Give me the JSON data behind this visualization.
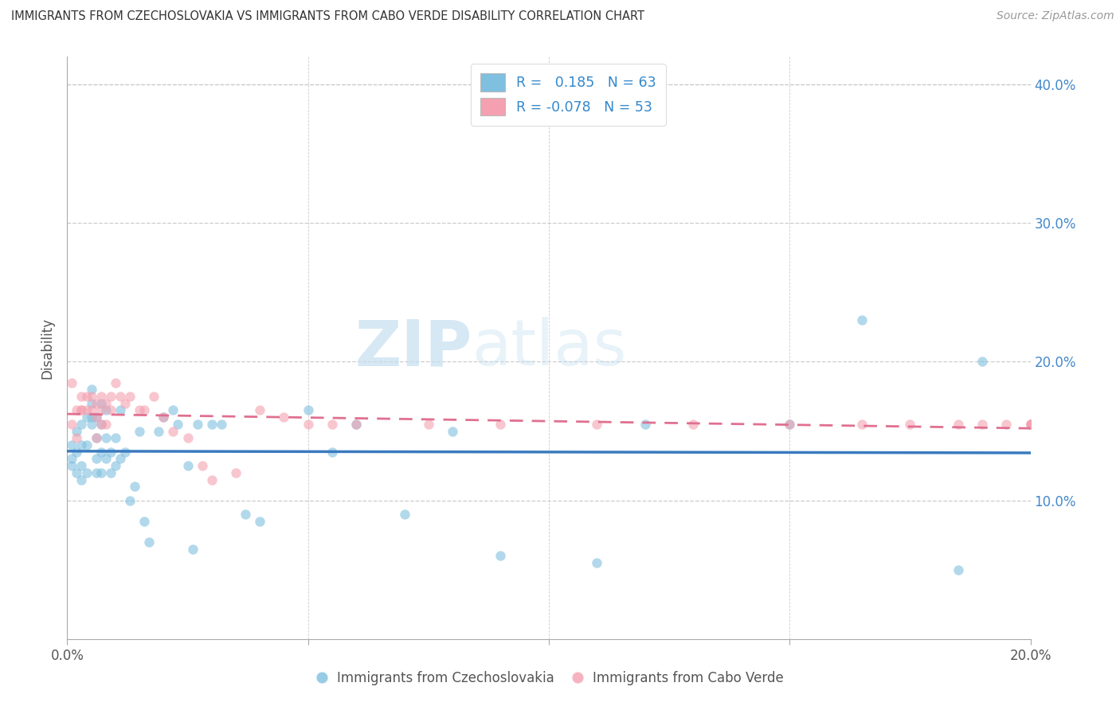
{
  "title": "IMMIGRANTS FROM CZECHOSLOVAKIA VS IMMIGRANTS FROM CABO VERDE DISABILITY CORRELATION CHART",
  "source": "Source: ZipAtlas.com",
  "ylabel": "Disability",
  "xlim": [
    0.0,
    0.2
  ],
  "ylim": [
    0.0,
    0.42
  ],
  "color_czech": "#7fbfdf",
  "color_cabo": "#f4a0b0",
  "color_line_czech": "#3a7abf",
  "color_line_cabo": "#e07090",
  "watermark_zip": "ZIP",
  "watermark_atlas": "atlas",
  "background_color": "#ffffff",
  "scatter_alpha": 0.6,
  "scatter_size": 80,
  "R_czech": 0.185,
  "N_czech": 63,
  "R_cabo": -0.078,
  "N_cabo": 53,
  "legend_labels": [
    "Immigrants from Czechoslovakia",
    "Immigrants from Cabo Verde"
  ],
  "czech_x": [
    0.001,
    0.001,
    0.001,
    0.002,
    0.002,
    0.002,
    0.003,
    0.003,
    0.003,
    0.003,
    0.004,
    0.004,
    0.004,
    0.005,
    0.005,
    0.005,
    0.005,
    0.006,
    0.006,
    0.006,
    0.006,
    0.007,
    0.007,
    0.007,
    0.007,
    0.008,
    0.008,
    0.008,
    0.009,
    0.009,
    0.01,
    0.01,
    0.011,
    0.011,
    0.012,
    0.013,
    0.014,
    0.015,
    0.016,
    0.017,
    0.019,
    0.02,
    0.022,
    0.023,
    0.025,
    0.026,
    0.027,
    0.03,
    0.032,
    0.037,
    0.04,
    0.05,
    0.055,
    0.06,
    0.07,
    0.08,
    0.09,
    0.11,
    0.12,
    0.15,
    0.165,
    0.185,
    0.19
  ],
  "czech_y": [
    0.125,
    0.13,
    0.14,
    0.12,
    0.135,
    0.15,
    0.115,
    0.125,
    0.14,
    0.155,
    0.12,
    0.14,
    0.16,
    0.155,
    0.16,
    0.17,
    0.18,
    0.12,
    0.13,
    0.145,
    0.16,
    0.12,
    0.135,
    0.155,
    0.17,
    0.13,
    0.145,
    0.165,
    0.12,
    0.135,
    0.125,
    0.145,
    0.13,
    0.165,
    0.135,
    0.1,
    0.11,
    0.15,
    0.085,
    0.07,
    0.15,
    0.16,
    0.165,
    0.155,
    0.125,
    0.065,
    0.155,
    0.155,
    0.155,
    0.09,
    0.085,
    0.165,
    0.135,
    0.155,
    0.09,
    0.15,
    0.06,
    0.055,
    0.155,
    0.155,
    0.23,
    0.05,
    0.2
  ],
  "cabo_x": [
    0.001,
    0.001,
    0.002,
    0.002,
    0.003,
    0.003,
    0.003,
    0.004,
    0.004,
    0.005,
    0.005,
    0.006,
    0.006,
    0.006,
    0.007,
    0.007,
    0.007,
    0.008,
    0.008,
    0.009,
    0.009,
    0.01,
    0.011,
    0.012,
    0.013,
    0.015,
    0.016,
    0.018,
    0.02,
    0.022,
    0.025,
    0.028,
    0.03,
    0.035,
    0.04,
    0.045,
    0.05,
    0.055,
    0.06,
    0.075,
    0.09,
    0.11,
    0.13,
    0.15,
    0.165,
    0.175,
    0.185,
    0.19,
    0.195,
    0.2,
    0.2,
    0.2,
    0.2
  ],
  "cabo_y": [
    0.185,
    0.155,
    0.145,
    0.165,
    0.165,
    0.165,
    0.175,
    0.165,
    0.175,
    0.165,
    0.175,
    0.145,
    0.16,
    0.17,
    0.155,
    0.165,
    0.175,
    0.155,
    0.17,
    0.165,
    0.175,
    0.185,
    0.175,
    0.17,
    0.175,
    0.165,
    0.165,
    0.175,
    0.16,
    0.15,
    0.145,
    0.125,
    0.115,
    0.12,
    0.165,
    0.16,
    0.155,
    0.155,
    0.155,
    0.155,
    0.155,
    0.155,
    0.155,
    0.155,
    0.155,
    0.155,
    0.155,
    0.155,
    0.155,
    0.155,
    0.155,
    0.155,
    0.155
  ]
}
